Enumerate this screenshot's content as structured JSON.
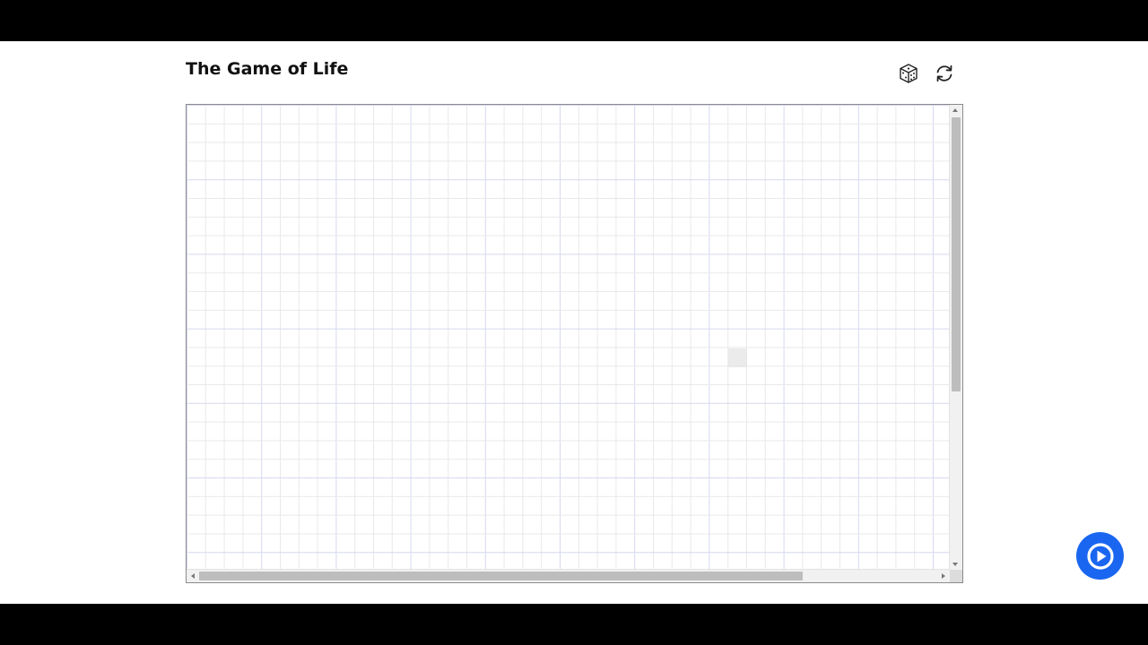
{
  "header": {
    "title": "The Game of Life"
  },
  "toolbar": {
    "randomize_icon": "dice-icon",
    "reset_icon": "refresh-icon"
  },
  "board": {
    "cell_lines": "#e9e9e9",
    "block_lines": "#d6d9ef",
    "hover_cell": "#e6e6e6"
  },
  "controls": {
    "play_icon": "play-icon",
    "accent": "#1a66f0"
  }
}
